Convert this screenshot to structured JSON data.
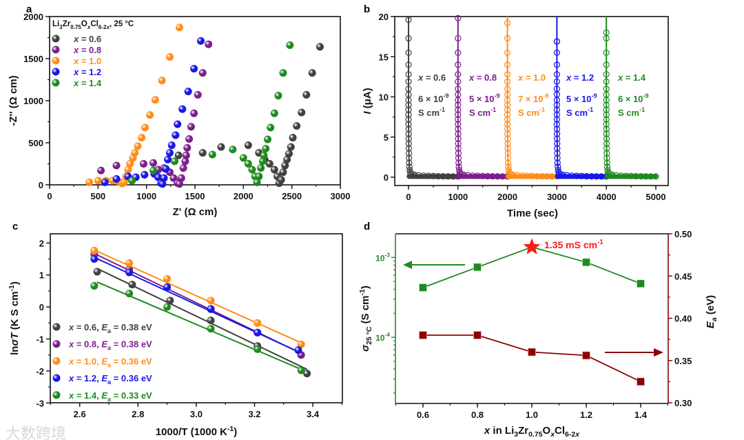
{
  "panel_letters": [
    "a",
    "b",
    "c",
    "d"
  ],
  "watermark": "大数跨境",
  "colors": {
    "x0.6": "#404040",
    "x0.8": "#7b1f8a",
    "x1.0": "#ff8c1a",
    "x1.2": "#1717e8",
    "x1.4": "#1f8a1f",
    "ea": "#8b0000",
    "star": "#ff1a1a",
    "sigma": "#1f8a1f"
  },
  "chart_data": [
    {
      "panel": "a",
      "type": "scatter",
      "title": [
        [
          "Li",
          ""
        ],
        [
          "3",
          "sub"
        ],
        [
          "Zr",
          ""
        ],
        [
          "0.75",
          "sub"
        ],
        [
          "O",
          ""
        ],
        [
          "x",
          "isub"
        ],
        [
          "Cl",
          ""
        ],
        [
          "6-2",
          "sub"
        ],
        [
          "x",
          "isub"
        ],
        [
          ", 25 °C",
          ""
        ]
      ],
      "xlabel": [
        [
          "Z' (Ω cm)",
          ""
        ]
      ],
      "ylabel": [
        [
          "-Z'' (Ω cm)",
          ""
        ]
      ],
      "xlim": [
        0,
        3000
      ],
      "ylim": [
        0,
        2000
      ],
      "xticks": [
        0,
        500,
        1000,
        1500,
        2000,
        2500,
        3000
      ],
      "xminor": 250,
      "yticks": [
        0,
        500,
        1000,
        1500,
        2000
      ],
      "yminor": 250,
      "legend": "top-left",
      "series": [
        {
          "name": "x = 0.6",
          "key": "x0.6",
          "points": [
            [
              1330,
              350
            ],
            [
              1580,
              380
            ],
            [
              1770,
              450
            ],
            [
              2050,
              470
            ],
            [
              2160,
              380
            ],
            [
              2220,
              300
            ],
            [
              2270,
              250
            ],
            [
              2320,
              180
            ],
            [
              2350,
              100
            ],
            [
              2370,
              20
            ],
            [
              2390,
              60
            ],
            [
              2410,
              150
            ],
            [
              2430,
              230
            ],
            [
              2450,
              300
            ],
            [
              2470,
              370
            ],
            [
              2490,
              450
            ],
            [
              2510,
              560
            ],
            [
              2550,
              700
            ],
            [
              2600,
              860
            ],
            [
              2650,
              1070
            ],
            [
              2710,
              1330
            ],
            [
              2790,
              1640
            ]
          ]
        },
        {
          "name": "x = 0.8",
          "key": "x0.8",
          "points": [
            [
              530,
              170
            ],
            [
              690,
              230
            ],
            [
              970,
              250
            ],
            [
              1070,
              260
            ],
            [
              1120,
              180
            ],
            [
              1180,
              200
            ],
            [
              1240,
              150
            ],
            [
              1280,
              80
            ],
            [
              1320,
              20
            ],
            [
              1340,
              10
            ],
            [
              1360,
              80
            ],
            [
              1380,
              200
            ],
            [
              1400,
              280
            ],
            [
              1410,
              350
            ],
            [
              1420,
              440
            ],
            [
              1440,
              545
            ],
            [
              1460,
              690
            ],
            [
              1490,
              850
            ],
            [
              1530,
              1070
            ],
            [
              1580,
              1330
            ],
            [
              1640,
              1670
            ]
          ]
        },
        {
          "name": "x = 1.0",
          "key": "x1.0",
          "points": [
            [
              410,
              30
            ],
            [
              500,
              50
            ],
            [
              580,
              50
            ],
            [
              650,
              50
            ],
            [
              710,
              40
            ],
            [
              750,
              15
            ],
            [
              770,
              30
            ],
            [
              790,
              100
            ],
            [
              810,
              180
            ],
            [
              830,
              250
            ],
            [
              860,
              320
            ],
            [
              880,
              380
            ],
            [
              910,
              460
            ],
            [
              950,
              560
            ],
            [
              985,
              680
            ],
            [
              1035,
              830
            ],
            [
              1090,
              1010
            ],
            [
              1160,
              1240
            ],
            [
              1240,
              1520
            ],
            [
              1340,
              1870
            ]
          ]
        },
        {
          "name": "x = 1.2",
          "key": "x1.2",
          "points": [
            [
              570,
              30
            ],
            [
              690,
              70
            ],
            [
              810,
              100
            ],
            [
              890,
              90
            ],
            [
              980,
              120
            ],
            [
              1080,
              130
            ],
            [
              1120,
              90
            ],
            [
              1150,
              20
            ],
            [
              1165,
              10
            ],
            [
              1180,
              80
            ],
            [
              1200,
              190
            ],
            [
              1220,
              300
            ],
            [
              1240,
              380
            ],
            [
              1260,
              470
            ],
            [
              1300,
              590
            ],
            [
              1320,
              720
            ],
            [
              1370,
              900
            ],
            [
              1430,
              1110
            ],
            [
              1490,
              1380
            ],
            [
              1560,
              1710
            ]
          ]
        },
        {
          "name": "x = 1.4",
          "key": "x1.4",
          "points": [
            [
              850,
              50
            ],
            [
              1070,
              170
            ],
            [
              1290,
              280
            ],
            [
              1680,
              360
            ],
            [
              1890,
              420
            ],
            [
              2000,
              320
            ],
            [
              2050,
              250
            ],
            [
              2090,
              180
            ],
            [
              2120,
              100
            ],
            [
              2140,
              30
            ],
            [
              2160,
              100
            ],
            [
              2180,
              200
            ],
            [
              2200,
              280
            ],
            [
              2210,
              350
            ],
            [
              2230,
              430
            ],
            [
              2250,
              540
            ],
            [
              2280,
              680
            ],
            [
              2320,
              850
            ],
            [
              2360,
              1060
            ],
            [
              2410,
              1330
            ],
            [
              2480,
              1660
            ]
          ]
        }
      ]
    },
    {
      "panel": "b",
      "type": "line",
      "xlabel": [
        [
          "Time (sec)",
          ""
        ]
      ],
      "ylabel": [
        [
          "I",
          "i"
        ],
        [
          " (μA)",
          ""
        ]
      ],
      "xlim": [
        0,
        5000
      ],
      "ylim": [
        0,
        20
      ],
      "xticks": [
        0,
        1000,
        2000,
        3000,
        4000,
        5000
      ],
      "xminor": 500,
      "yticks": [
        0,
        5,
        10,
        15,
        20
      ],
      "yminor": 2.5,
      "decay_offsets_sec": [
        0,
        0,
        0,
        0,
        0,
        0,
        0,
        0,
        0,
        0,
        0,
        0,
        0,
        0,
        2,
        3,
        4,
        5,
        6,
        8,
        10,
        13,
        18,
        25,
        35,
        50,
        80,
        120,
        200,
        300,
        400,
        500,
        600,
        700,
        800,
        900,
        1000
      ],
      "decay_currents_uA": [
        20,
        17.3,
        15.5,
        14,
        12.8,
        11.9,
        11,
        10.3,
        9.6,
        9,
        8.4,
        7.8,
        7.2,
        6.6,
        6,
        5.4,
        4.8,
        4.2,
        3.6,
        3,
        2.4,
        1.8,
        1.3,
        0.9,
        0.6,
        0.45,
        0.35,
        0.3,
        0.25,
        0.2,
        0.17,
        0.15,
        0.13,
        0.12,
        0.11,
        0.1,
        0.1
      ],
      "series": [
        {
          "name": "x = 0.6",
          "key": "x0.6",
          "start_sec": 0,
          "first_uA": 19.6,
          "conductivity": "6 × 10",
          "exp": "-9",
          "unit": "S cm",
          "unit_exp": "-1"
        },
        {
          "name": "x = 0.8",
          "key": "x0.8",
          "start_sec": 1000,
          "first_uA": 19.8,
          "conductivity": "5 × 10",
          "exp": "-9",
          "unit": "S cm",
          "unit_exp": "-1"
        },
        {
          "name": "x = 1.0",
          "key": "x1.0",
          "start_sec": 2000,
          "first_uA": 19.2,
          "conductivity": "7 × 10",
          "exp": "-9",
          "unit": "S cm",
          "unit_exp": "-1"
        },
        {
          "name": "x = 1.2",
          "key": "x1.2",
          "start_sec": 3000,
          "first_uA": 16.9,
          "conductivity": "5 × 10",
          "exp": "-9",
          "unit": "S cm",
          "unit_exp": "-1"
        },
        {
          "name": "x = 1.4",
          "key": "x1.4",
          "start_sec": 4000,
          "first_uA": 18.0,
          "conductivity": "6 × 10",
          "exp": "-9",
          "unit": "S cm",
          "unit_exp": "-1"
        }
      ]
    },
    {
      "panel": "c",
      "type": "scatter",
      "xlabel": [
        [
          "1000/T (1000 K",
          ""
        ],
        [
          "-1",
          "sup"
        ],
        [
          ")",
          ""
        ]
      ],
      "ylabel": [
        [
          "ln",
          ""
        ],
        [
          "σT",
          "i"
        ],
        [
          " (K S cm",
          ""
        ],
        [
          "-1",
          "sup"
        ],
        [
          ")",
          ""
        ]
      ],
      "xlim": [
        2.5,
        3.5
      ],
      "ylim": [
        -3,
        2.3
      ],
      "xticks": [
        2.6,
        2.8,
        3.0,
        3.2,
        3.4
      ],
      "xminor": 0.1,
      "yticks": [
        -3,
        -2,
        -1,
        0,
        1,
        2
      ],
      "yminor": 0.5,
      "legend": "bottom-left",
      "series": [
        {
          "name": "x = 0.6",
          "key": "x0.6",
          "ea": "0.38 eV",
          "points": [
            [
              2.66,
              1.1
            ],
            [
              2.78,
              0.7
            ],
            [
              2.91,
              0.2
            ],
            [
              3.05,
              -0.42
            ],
            [
              3.21,
              -1.22
            ],
            [
              3.38,
              -2.08
            ]
          ],
          "fit": [
            [
              2.66,
              1.2
            ],
            [
              3.38,
              -1.95
            ]
          ]
        },
        {
          "name": "x = 0.8",
          "key": "x0.8",
          "ea": "0.38 eV",
          "points": [
            [
              2.65,
              1.65
            ],
            [
              2.77,
              1.17
            ],
            [
              2.9,
              0.62
            ],
            [
              3.05,
              -0.07
            ],
            [
              3.21,
              -0.8
            ],
            [
              3.36,
              -1.5
            ]
          ],
          "fit": [
            [
              2.65,
              1.67
            ],
            [
              3.36,
              -1.45
            ]
          ]
        },
        {
          "name": "x = 1.0",
          "key": "x1.0",
          "ea": "0.36 eV",
          "points": [
            [
              2.65,
              1.76
            ],
            [
              2.77,
              1.37
            ],
            [
              2.9,
              0.88
            ],
            [
              3.05,
              0.2
            ],
            [
              3.21,
              -0.5
            ],
            [
              3.36,
              -1.17
            ]
          ],
          "fit": [
            [
              2.65,
              1.78
            ],
            [
              3.36,
              -1.12
            ]
          ]
        },
        {
          "name": "x = 1.2",
          "key": "x1.2",
          "ea": "0.36 eV",
          "points": [
            [
              2.65,
              1.5
            ],
            [
              2.77,
              1.08
            ],
            [
              2.9,
              0.62
            ],
            [
              3.05,
              -0.06
            ],
            [
              3.21,
              -0.8
            ],
            [
              3.35,
              -1.35
            ]
          ],
          "fit": [
            [
              2.65,
              1.55
            ],
            [
              3.35,
              -1.4
            ]
          ]
        },
        {
          "name": "x = 1.4",
          "key": "x1.4",
          "ea": "0.33 eV",
          "points": [
            [
              2.65,
              0.66
            ],
            [
              2.77,
              0.42
            ],
            [
              2.9,
              0.0
            ],
            [
              3.05,
              -0.68
            ],
            [
              3.21,
              -1.32
            ],
            [
              3.36,
              -1.98
            ]
          ],
          "fit": [
            [
              2.66,
              0.78
            ],
            [
              3.36,
              -1.95
            ]
          ]
        }
      ]
    },
    {
      "panel": "d",
      "type": "line",
      "xlabel": [
        [
          "x",
          "i"
        ],
        [
          " in Li",
          ""
        ],
        [
          "3",
          "sub"
        ],
        [
          "Zr",
          ""
        ],
        [
          "0.75",
          "sub"
        ],
        [
          "O",
          ""
        ],
        [
          "x",
          "isub"
        ],
        [
          "Cl",
          ""
        ],
        [
          "6-2",
          "sub"
        ],
        [
          "x",
          "isub"
        ]
      ],
      "ylabel_left": [
        [
          "σ",
          "i"
        ],
        [
          "25 °C",
          "sub"
        ],
        [
          " (S cm",
          ""
        ],
        [
          "-1",
          "sup"
        ],
        [
          ")",
          ""
        ]
      ],
      "ylabel_right": [
        [
          "E",
          "i"
        ],
        [
          "a",
          "isub"
        ],
        [
          " (eV)",
          ""
        ]
      ],
      "xlim": [
        0.5,
        1.5
      ],
      "ylim_left_log10": [
        -4.83,
        -2.7
      ],
      "ylim_right": [
        0.3,
        0.5
      ],
      "xticks": [
        0.6,
        0.8,
        1.0,
        1.2,
        1.4
      ],
      "xminor": 0.1,
      "yticks_left": [
        {
          "v": 0.001,
          "base": "10",
          "exp": "-3"
        },
        {
          "v": 0.0001,
          "base": "10",
          "exp": "-4"
        }
      ],
      "yticks_right": [
        0.3,
        0.35,
        0.4,
        0.45,
        0.5
      ],
      "yminor_right": 0.025,
      "x": [
        0.6,
        0.8,
        1.0,
        1.2,
        1.4
      ],
      "sigma_S_cm": [
        0.000419,
        0.000755,
        0.00135,
        0.00087,
        0.00047
      ],
      "ea_eV": [
        0.38,
        0.38,
        0.36,
        0.356,
        0.325
      ],
      "annotation": [
        [
          "1.35 mS cm",
          ""
        ],
        [
          "-1",
          "sup"
        ]
      ],
      "highlight_x": 1.0
    }
  ]
}
